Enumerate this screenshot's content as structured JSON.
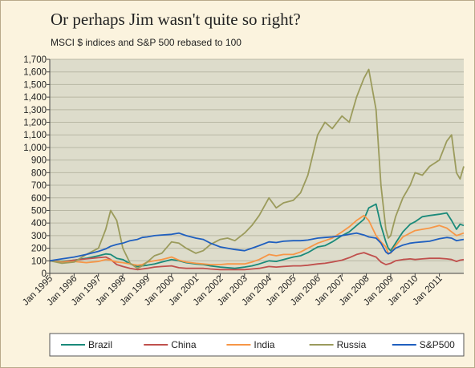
{
  "title": "Or perhaps Jim wasn't quite so right?",
  "subtitle": "MSCI $ indices and S&P 500 rebased to 100",
  "chart_data": {
    "type": "line",
    "ylim": [
      0,
      1700
    ],
    "y_ticks": [
      "0",
      "100",
      "200",
      "300",
      "400",
      "500",
      "600",
      "700",
      "800",
      "900",
      "1,000",
      "1,100",
      "1,200",
      "1,300",
      "1,400",
      "1,500",
      "1,600",
      "1,700"
    ],
    "x_ticks": [
      "Jan 1995",
      "Jan 1996",
      "Jan 1997",
      "Jan 1998",
      "Jan 1999",
      "Jan 2000",
      "Jan 2001",
      "Jan 2002",
      "Jan 2003",
      "Jan 2004",
      "Jan 2005",
      "Jan 2006",
      "Jan 2007",
      "Jan 2008",
      "Jan 2009",
      "Jan 2010",
      "Jan 2011"
    ],
    "x_range": [
      1995.0,
      2012.0
    ],
    "grid": "horizontal",
    "legend_position": "bottom",
    "x": [
      1995.0,
      1995.5,
      1996.0,
      1996.5,
      1997.0,
      1997.3,
      1997.5,
      1997.75,
      1998.0,
      1998.3,
      1998.6,
      1998.8,
      1999.0,
      1999.3,
      1999.6,
      2000.0,
      2000.3,
      2000.6,
      2001.0,
      2001.3,
      2001.6,
      2002.0,
      2002.3,
      2002.6,
      2003.0,
      2003.3,
      2003.6,
      2004.0,
      2004.3,
      2004.6,
      2005.0,
      2005.3,
      2005.6,
      2006.0,
      2006.3,
      2006.6,
      2007.0,
      2007.3,
      2007.6,
      2007.9,
      2008.1,
      2008.4,
      2008.6,
      2008.8,
      2008.9,
      2009.0,
      2009.2,
      2009.5,
      2009.8,
      2010.0,
      2010.3,
      2010.6,
      2011.0,
      2011.3,
      2011.5,
      2011.7,
      2011.85,
      2012.0
    ],
    "series": [
      {
        "name": "Brazil",
        "color": "#1a8a7a",
        "values": [
          100,
          95,
          105,
          120,
          140,
          155,
          150,
          120,
          110,
          75,
          55,
          60,
          65,
          75,
          90,
          110,
          100,
          85,
          75,
          70,
          60,
          50,
          45,
          40,
          50,
          60,
          75,
          100,
          95,
          110,
          130,
          140,
          165,
          210,
          220,
          250,
          300,
          330,
          380,
          430,
          520,
          550,
          380,
          250,
          200,
          180,
          240,
          330,
          390,
          410,
          450,
          460,
          470,
          480,
          420,
          350,
          390,
          380
        ]
      },
      {
        "name": "China",
        "color": "#c0504d",
        "values": [
          100,
          90,
          105,
          115,
          125,
          130,
          110,
          70,
          55,
          40,
          30,
          35,
          40,
          50,
          55,
          60,
          45,
          40,
          40,
          40,
          35,
          30,
          30,
          30,
          30,
          35,
          40,
          55,
          50,
          55,
          60,
          60,
          65,
          75,
          80,
          90,
          105,
          125,
          150,
          165,
          150,
          130,
          90,
          70,
          75,
          80,
          100,
          110,
          115,
          110,
          115,
          120,
          120,
          115,
          110,
          95,
          105,
          110
        ]
      },
      {
        "name": "India",
        "color": "#f79646",
        "values": [
          100,
          90,
          95,
          85,
          95,
          110,
          105,
          90,
          85,
          75,
          65,
          70,
          90,
          100,
          110,
          130,
          105,
          90,
          80,
          75,
          70,
          70,
          75,
          75,
          75,
          90,
          110,
          150,
          140,
          150,
          150,
          170,
          200,
          240,
          260,
          280,
          330,
          370,
          420,
          460,
          420,
          300,
          250,
          210,
          160,
          160,
          220,
          290,
          320,
          340,
          350,
          360,
          380,
          360,
          330,
          300,
          310,
          320
        ]
      },
      {
        "name": "Russia",
        "color": "#9b9b5c",
        "values": [
          100,
          80,
          90,
          150,
          200,
          350,
          500,
          420,
          200,
          80,
          40,
          60,
          90,
          140,
          160,
          250,
          240,
          200,
          160,
          180,
          230,
          270,
          280,
          260,
          320,
          380,
          460,
          600,
          520,
          560,
          580,
          640,
          780,
          1100,
          1200,
          1150,
          1250,
          1200,
          1400,
          1550,
          1620,
          1300,
          700,
          350,
          280,
          300,
          450,
          600,
          700,
          800,
          780,
          850,
          900,
          1050,
          1100,
          800,
          750,
          850
        ]
      },
      {
        "name": "S&P500",
        "color": "#1f5fbf",
        "values": [
          100,
          115,
          130,
          150,
          175,
          195,
          215,
          230,
          240,
          260,
          270,
          285,
          290,
          300,
          305,
          310,
          320,
          300,
          280,
          270,
          240,
          210,
          200,
          190,
          180,
          200,
          220,
          250,
          245,
          255,
          260,
          260,
          265,
          280,
          285,
          290,
          300,
          310,
          320,
          305,
          290,
          280,
          240,
          170,
          155,
          165,
          200,
          225,
          240,
          245,
          250,
          255,
          275,
          285,
          280,
          260,
          265,
          270
        ]
      }
    ]
  }
}
